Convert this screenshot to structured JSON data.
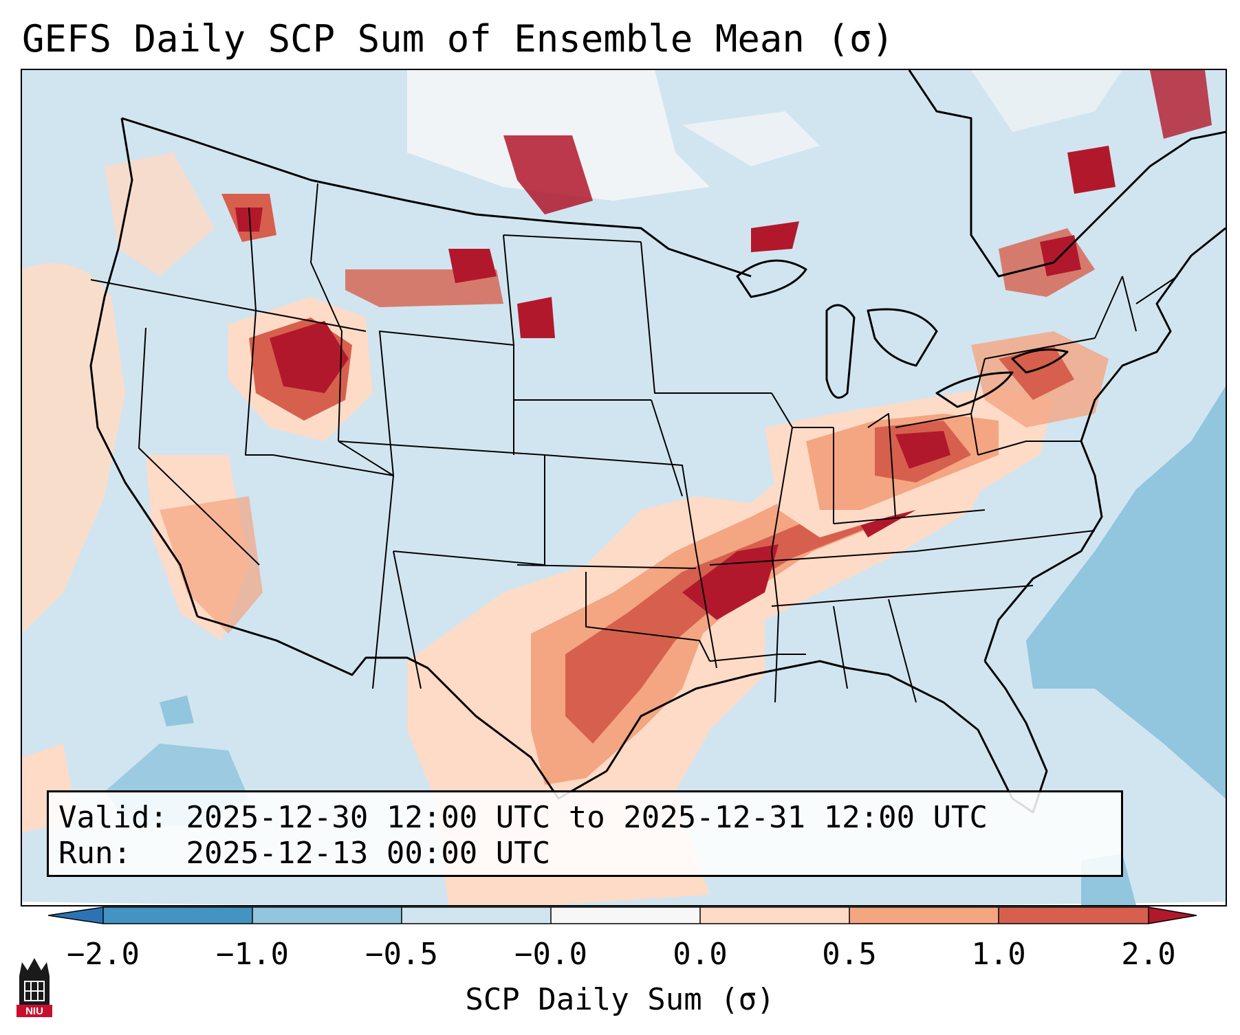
{
  "title": "GEFS Daily SCP Sum of Ensemble Mean (σ)",
  "info": {
    "valid_label": "Valid:",
    "valid_value": "2025-12-30 12:00 UTC to 2025-12-31 12:00 UTC",
    "run_label": "Run:",
    "run_value": "2025-12-13 00:00 UTC"
  },
  "colorbar": {
    "label": "SCP Daily Sum (σ)",
    "ticks": [
      "−2.0",
      "−1.0",
      "−0.5",
      "−0.0",
      "0.0",
      "0.5",
      "1.0",
      "2.0"
    ],
    "colors": {
      "below_min": "#2c73b4",
      "bin_-2_-1": "#4393c3",
      "bin_-1_-0.5": "#92c5de",
      "bin_-0.5_0": "#d1e5f0",
      "bin_0_0": "#f7f7f7",
      "bin_0_0.5": "#fddbc7",
      "bin_0.5_1": "#f4a582",
      "bin_1_2": "#d6604d",
      "above_max": "#b2182b"
    }
  },
  "logo": {
    "text": "NIU",
    "color": "#c8102e"
  }
}
